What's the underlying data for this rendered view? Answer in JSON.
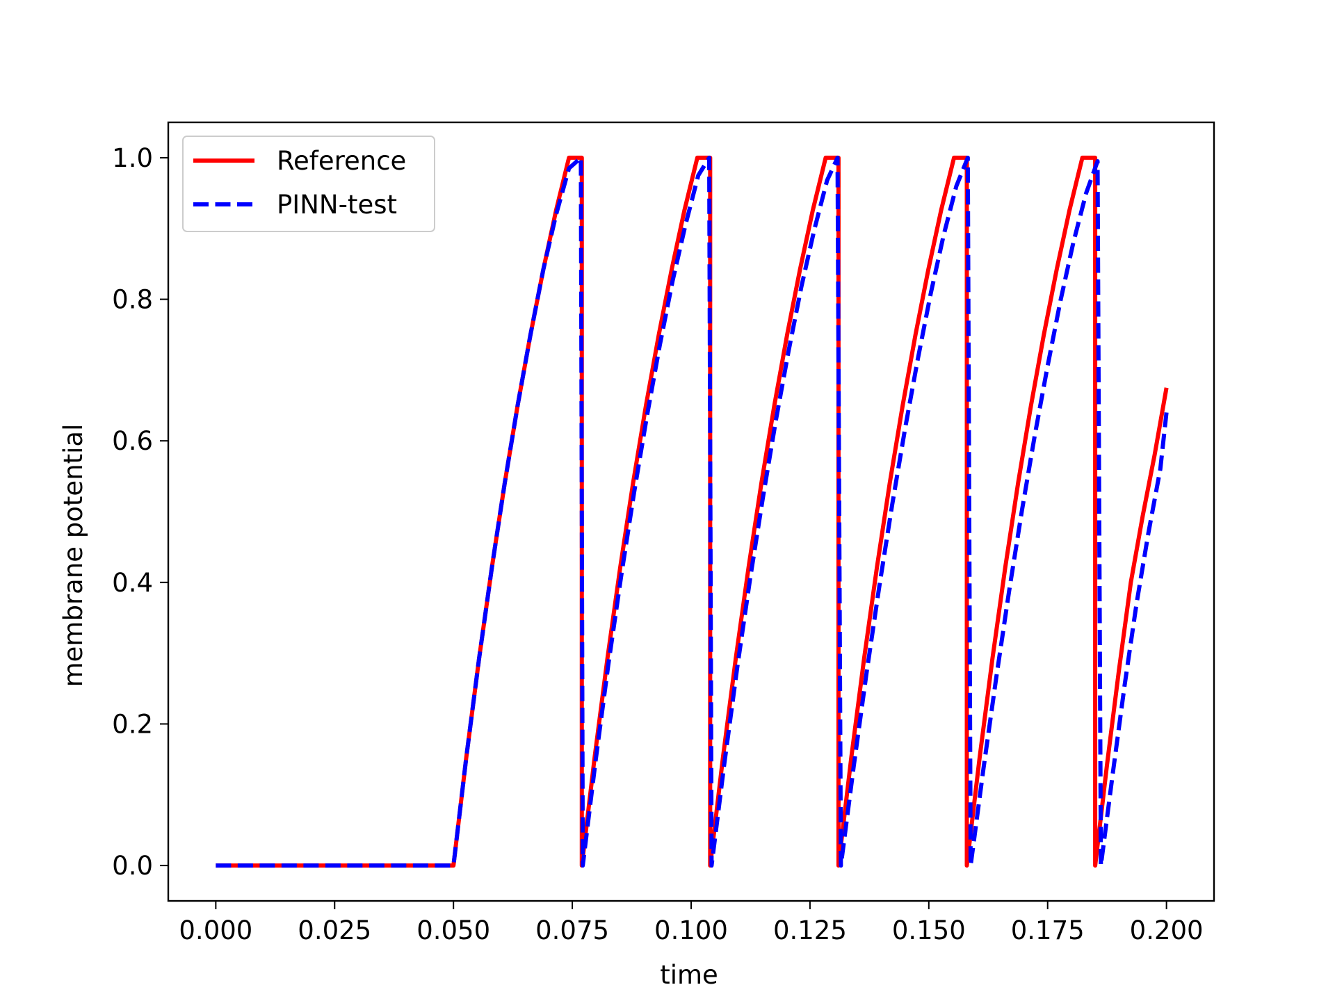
{
  "chart_data": {
    "type": "line",
    "title": "",
    "xlabel": "time",
    "ylabel": "membrane potential",
    "xlim": [
      -0.01,
      0.21
    ],
    "ylim": [
      -0.05,
      1.05
    ],
    "x_ticks": [
      "0.000",
      "0.025",
      "0.050",
      "0.075",
      "0.100",
      "0.125",
      "0.150",
      "0.175",
      "0.200"
    ],
    "y_ticks": [
      "0.0",
      "0.2",
      "0.4",
      "0.6",
      "0.8",
      "1.0"
    ],
    "legend_position": "top-left",
    "grid": false,
    "series": [
      {
        "name": "Reference",
        "color": "#ff0000",
        "style": "solid",
        "x": [
          0.0,
          0.05,
          0.0527,
          0.0554,
          0.0581,
          0.0608,
          0.0635,
          0.0662,
          0.0689,
          0.0716,
          0.0743,
          0.077,
          0.077,
          0.077,
          0.0797,
          0.0824,
          0.0851,
          0.0878,
          0.0905,
          0.0932,
          0.0959,
          0.0986,
          0.1013,
          0.104,
          0.104,
          0.104,
          0.1067,
          0.1094,
          0.1121,
          0.1148,
          0.1175,
          0.1202,
          0.1229,
          0.1256,
          0.1283,
          0.131,
          0.131,
          0.131,
          0.1337,
          0.1364,
          0.1391,
          0.1418,
          0.1445,
          0.1472,
          0.1499,
          0.1526,
          0.1553,
          0.158,
          0.158,
          0.158,
          0.1607,
          0.1634,
          0.1661,
          0.1688,
          0.1715,
          0.1742,
          0.1769,
          0.1796,
          0.1823,
          0.185,
          0.185,
          0.185,
          0.1875,
          0.19,
          0.1925,
          0.195,
          0.1975,
          0.2
        ],
        "y": [
          0.0,
          0.0,
          0.153,
          0.293,
          0.422,
          0.541,
          0.65,
          0.75,
          0.842,
          0.926,
          1.0,
          1.0,
          0.0,
          0.0,
          0.153,
          0.293,
          0.422,
          0.541,
          0.65,
          0.75,
          0.842,
          0.926,
          1.0,
          1.0,
          0.0,
          0.0,
          0.153,
          0.293,
          0.422,
          0.541,
          0.65,
          0.75,
          0.842,
          0.926,
          1.0,
          1.0,
          0.0,
          0.0,
          0.153,
          0.293,
          0.422,
          0.541,
          0.65,
          0.75,
          0.842,
          0.926,
          1.0,
          1.0,
          0.0,
          0.0,
          0.153,
          0.293,
          0.422,
          0.541,
          0.65,
          0.75,
          0.842,
          0.926,
          1.0,
          1.0,
          0.0,
          0.0,
          0.143,
          0.276,
          0.4,
          0.494,
          0.58,
          0.675
        ]
      },
      {
        "name": "PINN-test",
        "color": "#0000ff",
        "style": "dashed",
        "x": [
          0.0,
          0.05,
          0.0527,
          0.0554,
          0.0581,
          0.0608,
          0.0635,
          0.0662,
          0.0689,
          0.0716,
          0.0743,
          0.0768,
          0.0772,
          0.0772,
          0.0799,
          0.0826,
          0.0853,
          0.088,
          0.0907,
          0.0934,
          0.0961,
          0.0988,
          0.1015,
          0.1038,
          0.1043,
          0.1043,
          0.107,
          0.1097,
          0.1124,
          0.1151,
          0.1178,
          0.1205,
          0.1232,
          0.1259,
          0.1286,
          0.1308,
          0.1315,
          0.1315,
          0.1342,
          0.1369,
          0.1396,
          0.1423,
          0.145,
          0.1477,
          0.1504,
          0.1531,
          0.1558,
          0.1582,
          0.1588,
          0.1588,
          0.1615,
          0.1642,
          0.1669,
          0.1696,
          0.1723,
          0.175,
          0.1777,
          0.1804,
          0.1831,
          0.1855,
          0.1862,
          0.1862,
          0.1887,
          0.1912,
          0.1937,
          0.1962,
          0.1987,
          0.2
        ],
        "y": [
          0.0,
          0.0,
          0.153,
          0.293,
          0.422,
          0.541,
          0.65,
          0.75,
          0.842,
          0.92,
          0.985,
          1.0,
          0.0,
          0.0,
          0.148,
          0.285,
          0.41,
          0.527,
          0.635,
          0.735,
          0.826,
          0.905,
          0.975,
          1.0,
          0.0,
          0.0,
          0.145,
          0.28,
          0.405,
          0.52,
          0.628,
          0.727,
          0.818,
          0.898,
          0.968,
          1.0,
          0.0,
          0.0,
          0.14,
          0.272,
          0.395,
          0.51,
          0.617,
          0.716,
          0.808,
          0.89,
          0.96,
          1.0,
          0.0,
          0.0,
          0.137,
          0.266,
          0.388,
          0.502,
          0.608,
          0.706,
          0.798,
          0.88,
          0.95,
          0.995,
          0.0,
          0.0,
          0.13,
          0.255,
          0.37,
          0.47,
          0.56,
          0.64
        ]
      }
    ]
  }
}
